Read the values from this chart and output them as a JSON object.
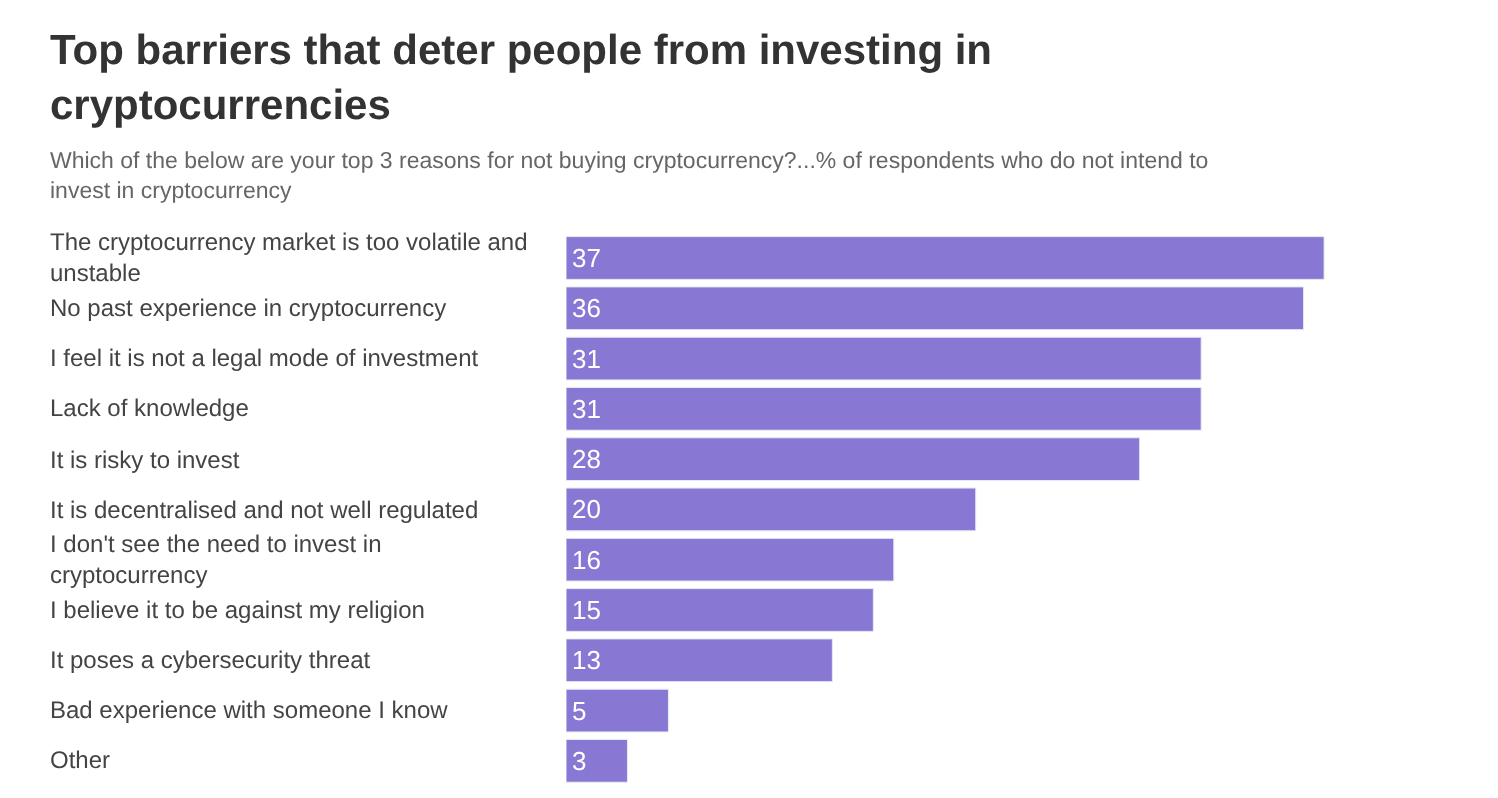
{
  "chart_data": {
    "type": "bar",
    "orientation": "horizontal",
    "title": "Top barriers that deter people from investing in cryptocurrencies",
    "subtitle": "Which of the below are your top 3 reasons for not buying cryptocurrency?...% of respondents who do not intend to invest in cryptocurrency",
    "categories": [
      "The cryptocurrency market is too volatile and unstable",
      "No past experience in cryptocurrency",
      "I feel it is not a legal mode of investment",
      "Lack of knowledge",
      "It is risky to invest",
      "It is decentralised and not well regulated",
      "I don't see the need to invest in cryptocurrency",
      "I believe it to be against my religion",
      "It poses a cybersecurity threat",
      "Bad experience with someone I know",
      "Other"
    ],
    "values": [
      37,
      36,
      31,
      31,
      28,
      20,
      16,
      15,
      13,
      5,
      3
    ],
    "color": "#8878d4",
    "data_labels": true
  }
}
